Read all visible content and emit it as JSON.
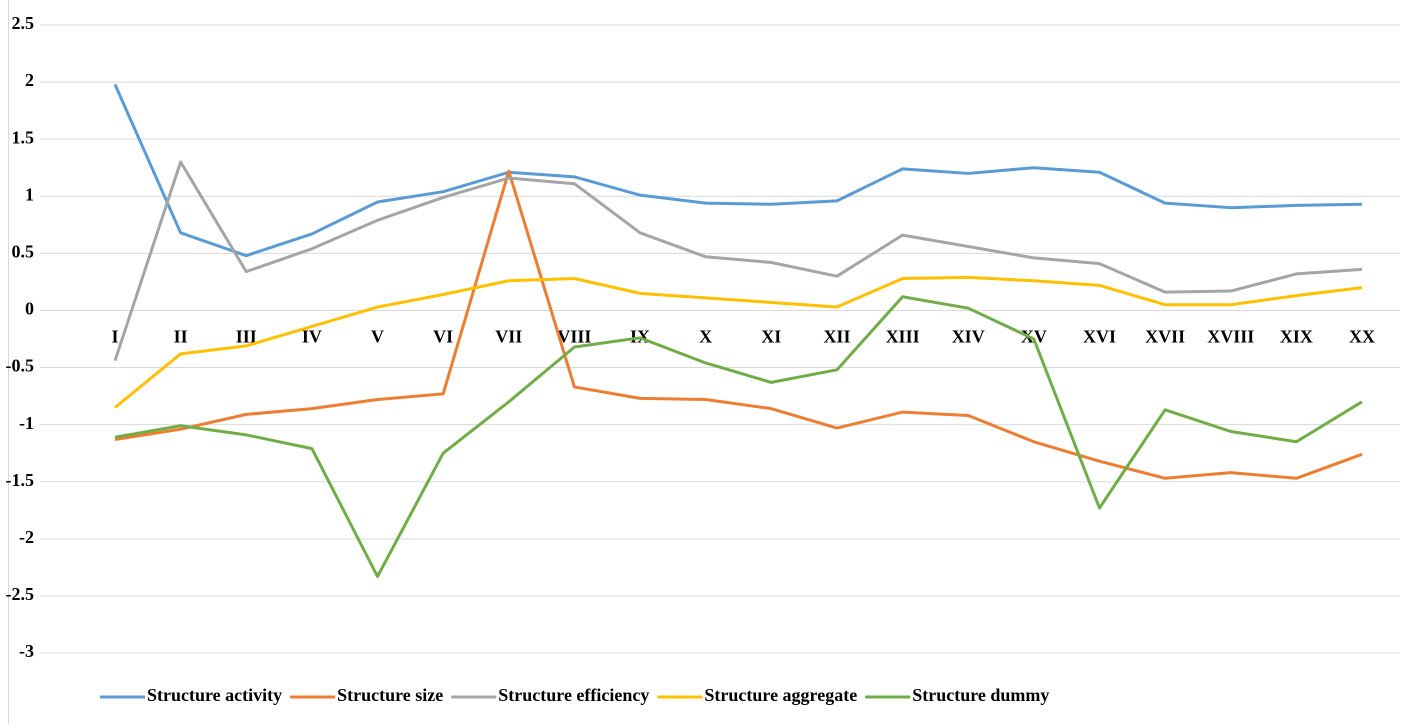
{
  "chart_data": {
    "type": "line",
    "categories": [
      "I",
      "II",
      "III",
      "IV",
      "V",
      "VI",
      "VII",
      "VIII",
      "IX",
      "X",
      "XI",
      "XII",
      "XIII",
      "XIV",
      "XV",
      "XVI",
      "XVII",
      "XVIII",
      "XIX",
      "XX"
    ],
    "series": [
      {
        "name": "Structure activity",
        "color": "#5b9bd5",
        "values": [
          1.98,
          0.68,
          0.48,
          0.67,
          0.95,
          1.04,
          1.21,
          1.17,
          1.01,
          0.94,
          0.93,
          0.96,
          1.24,
          1.2,
          1.25,
          1.21,
          0.94,
          0.9,
          0.92,
          0.93
        ]
      },
      {
        "name": "Structure size",
        "color": "#ed7d31",
        "values": [
          -1.13,
          -1.04,
          -0.91,
          -0.86,
          -0.78,
          -0.73,
          1.22,
          -0.67,
          -0.77,
          -0.78,
          -0.86,
          -1.03,
          -0.89,
          -0.92,
          -1.15,
          -1.32,
          -1.47,
          -1.42,
          -1.47,
          -1.26
        ]
      },
      {
        "name": "Structure efficiency",
        "color": "#a5a5a5",
        "values": [
          -0.44,
          1.3,
          0.34,
          0.54,
          0.79,
          0.99,
          1.16,
          1.11,
          0.68,
          0.47,
          0.42,
          0.3,
          0.66,
          0.56,
          0.46,
          0.41,
          0.16,
          0.17,
          0.32,
          0.36
        ]
      },
      {
        "name": "Structure aggregate",
        "color": "#ffc000",
        "values": [
          -0.85,
          -0.38,
          -0.31,
          -0.14,
          0.03,
          0.14,
          0.26,
          0.28,
          0.15,
          0.11,
          0.07,
          0.03,
          0.28,
          0.29,
          0.26,
          0.22,
          0.05,
          0.05,
          0.13,
          0.2
        ]
      },
      {
        "name": "Structure dummy",
        "color": "#70ad47",
        "values": [
          -1.11,
          -1.01,
          -1.09,
          -1.21,
          -2.33,
          -1.25,
          -0.8,
          -0.32,
          -0.24,
          -0.46,
          -0.63,
          -0.52,
          0.12,
          0.02,
          -0.25,
          -1.73,
          -0.87,
          -1.06,
          -1.15,
          -0.8
        ]
      }
    ],
    "ylim": [
      -3,
      2.5
    ],
    "yticks": [
      -3,
      -2.5,
      -2,
      -1.5,
      -1,
      -0.5,
      0,
      0.5,
      1,
      1.5,
      2,
      2.5
    ],
    "grid": true,
    "legend": "bottom"
  }
}
